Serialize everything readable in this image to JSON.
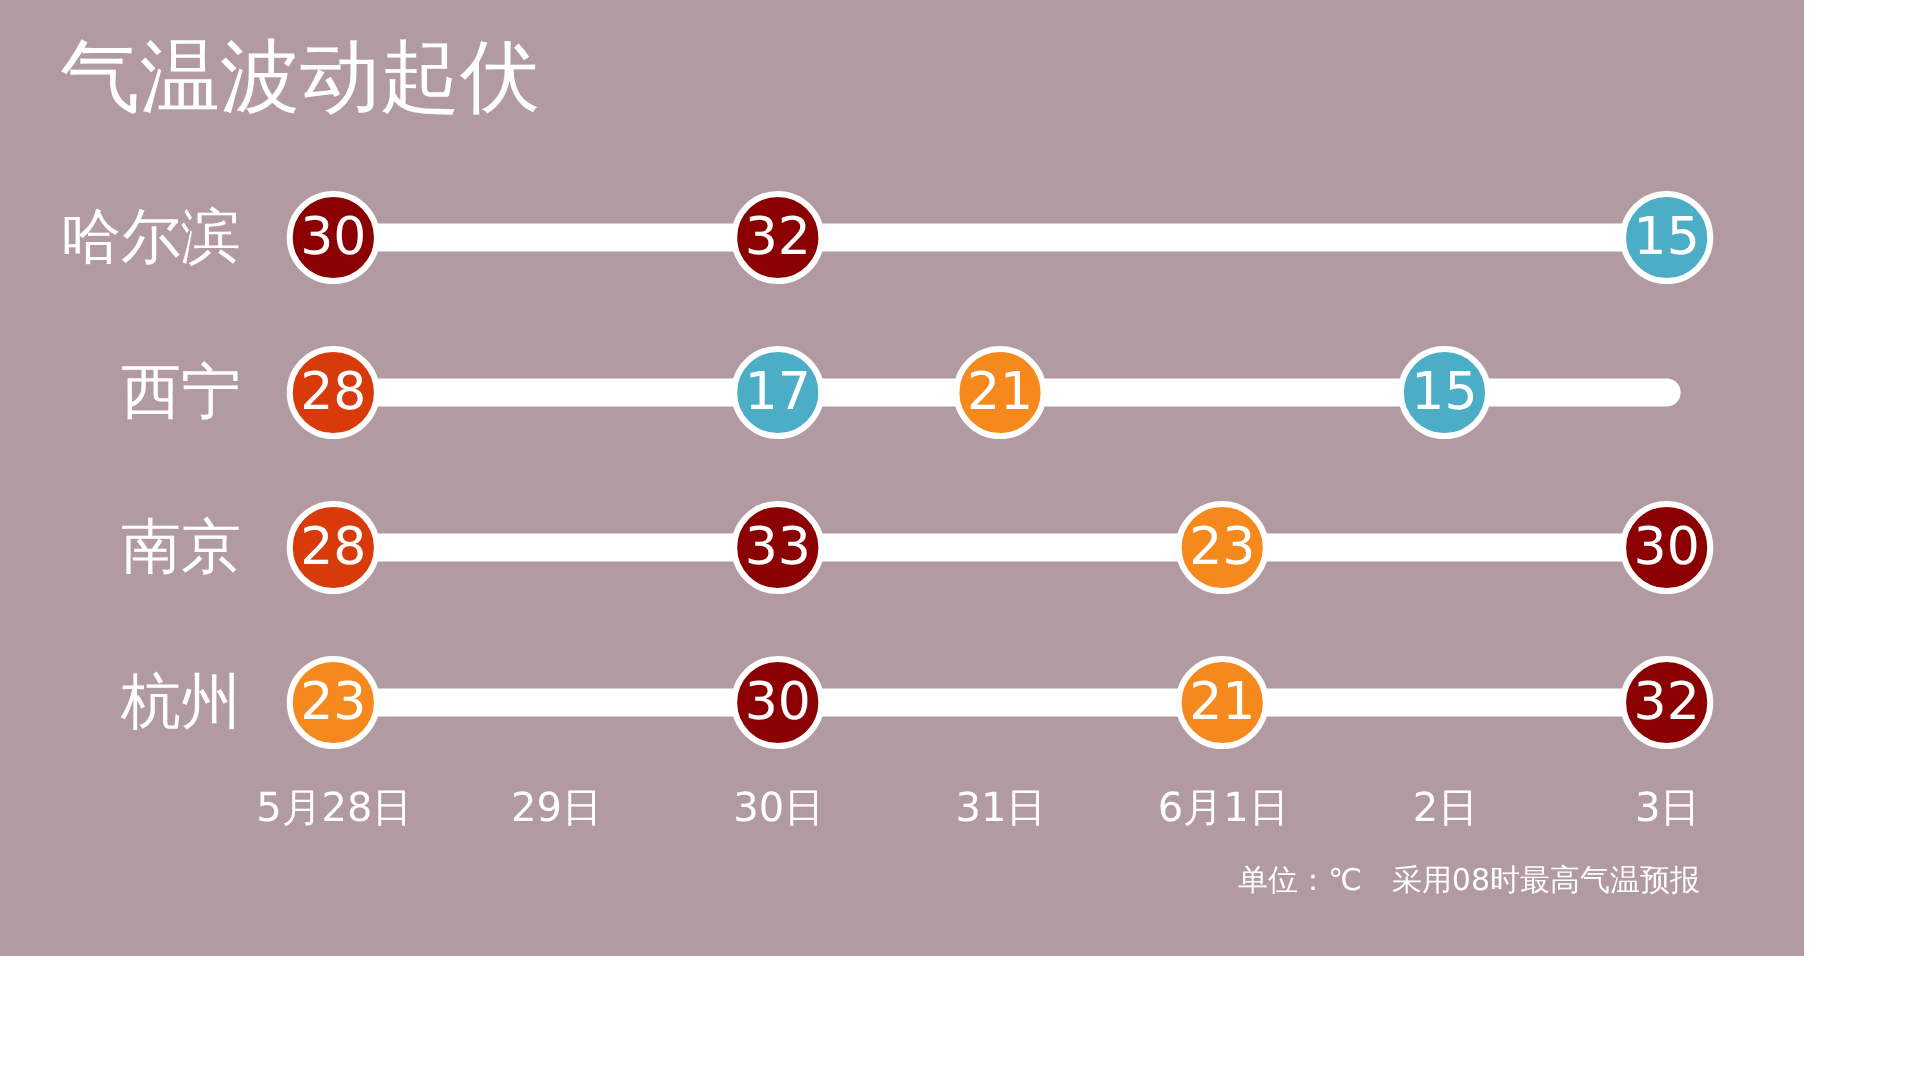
{
  "chart_data": {
    "type": "heatmap",
    "title": "气温波动起伏",
    "categories": [
      "5月28日",
      "29日",
      "30日",
      "31日",
      "6月1日",
      "2日",
      "3日"
    ],
    "y_categories": [
      "哈尔滨",
      "西宁",
      "南京",
      "杭州"
    ],
    "cells": [
      [
        30,
        null,
        32,
        null,
        null,
        null,
        15
      ],
      [
        28,
        null,
        17,
        21,
        null,
        15,
        null
      ],
      [
        28,
        null,
        33,
        null,
        23,
        null,
        30
      ],
      [
        23,
        null,
        30,
        null,
        21,
        null,
        32
      ]
    ],
    "colors": [
      [
        "#8b0000",
        null,
        "#8b0000",
        null,
        null,
        null,
        "#4badc6"
      ],
      [
        "#d83a0a",
        null,
        "#4badc6",
        "#f5891e",
        null,
        "#4badc6",
        null
      ],
      [
        "#d83a0a",
        null,
        "#8b0000",
        null,
        "#f5891e",
        null,
        "#8b0000"
      ],
      [
        "#f5891e",
        null,
        "#8b0000",
        null,
        "#f5891e",
        null,
        "#8b0000"
      ]
    ],
    "data_labels": true,
    "grid": false,
    "annotations": [
      "单位：℃　采用08时最高气温预报"
    ]
  }
}
